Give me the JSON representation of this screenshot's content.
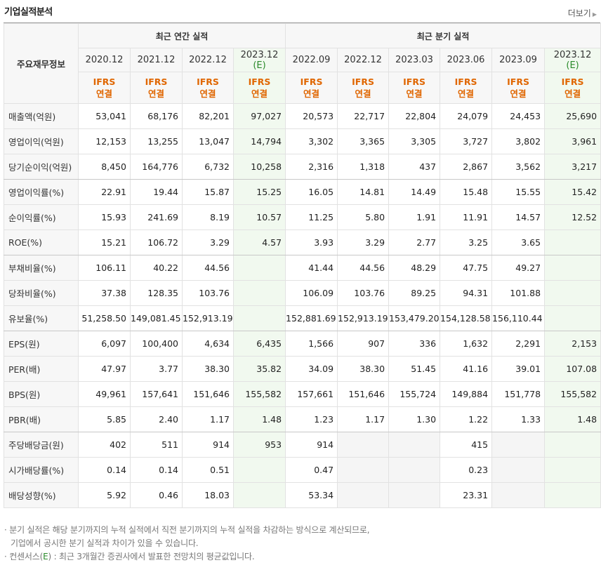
{
  "header": {
    "title": "기업실적분석",
    "more": "더보기"
  },
  "columns": {
    "label_header": "주요재무정보",
    "annual_group": "최근 연간 실적",
    "quarter_group": "최근 분기 실적",
    "periods": [
      {
        "line1": "2020.12",
        "line2": ""
      },
      {
        "line1": "2021.12",
        "line2": ""
      },
      {
        "line1": "2022.12",
        "line2": ""
      },
      {
        "line1": "2023.12",
        "line2": "(E)"
      },
      {
        "line1": "2022.09",
        "line2": ""
      },
      {
        "line1": "2022.12",
        "line2": ""
      },
      {
        "line1": "2023.03",
        "line2": ""
      },
      {
        "line1": "2023.06",
        "line2": ""
      },
      {
        "line1": "2023.09",
        "line2": ""
      },
      {
        "line1": "2023.12",
        "line2": "(E)"
      }
    ],
    "basis_line1": "IFRS",
    "basis_line2": "연결"
  },
  "rows": [
    {
      "label": "매출액(억원)",
      "values": [
        "53,041",
        "68,176",
        "82,201",
        "97,027",
        "20,573",
        "22,717",
        "22,804",
        "24,079",
        "24,453",
        "25,690"
      ]
    },
    {
      "label": "영업이익(억원)",
      "values": [
        "12,153",
        "13,255",
        "13,047",
        "14,794",
        "3,302",
        "3,365",
        "3,305",
        "3,727",
        "3,802",
        "3,961"
      ]
    },
    {
      "label": "당기순이익(억원)",
      "values": [
        "8,450",
        "164,776",
        "6,732",
        "10,258",
        "2,316",
        "1,318",
        "437",
        "2,867",
        "3,562",
        "3,217"
      ]
    },
    {
      "label": "영업이익률(%)",
      "values": [
        "22.91",
        "19.44",
        "15.87",
        "15.25",
        "16.05",
        "14.81",
        "14.49",
        "15.48",
        "15.55",
        "15.42"
      ]
    },
    {
      "label": "순이익률(%)",
      "values": [
        "15.93",
        "241.69",
        "8.19",
        "10.57",
        "11.25",
        "5.80",
        "1.91",
        "11.91",
        "14.57",
        "12.52"
      ]
    },
    {
      "label": "ROE(%)",
      "values": [
        "15.21",
        "106.72",
        "3.29",
        "4.57",
        "3.93",
        "3.29",
        "2.77",
        "3.25",
        "3.65",
        ""
      ]
    },
    {
      "label": "부채비율(%)",
      "values": [
        "106.11",
        "40.22",
        "44.56",
        "",
        "41.44",
        "44.56",
        "48.29",
        "47.75",
        "49.27",
        ""
      ]
    },
    {
      "label": "당좌비율(%)",
      "values": [
        "37.38",
        "128.35",
        "103.76",
        "",
        "106.09",
        "103.76",
        "89.25",
        "94.31",
        "101.88",
        ""
      ]
    },
    {
      "label": "유보율(%)",
      "values": [
        "51,258.50",
        "149,081.45",
        "152,913.19",
        "",
        "152,881.69",
        "152,913.19",
        "153,479.20",
        "154,128.58",
        "156,110.44",
        ""
      ]
    },
    {
      "label": "EPS(원)",
      "values": [
        "6,097",
        "100,400",
        "4,634",
        "6,435",
        "1,566",
        "907",
        "336",
        "1,632",
        "2,291",
        "2,153"
      ]
    },
    {
      "label": "PER(배)",
      "values": [
        "47.97",
        "3.77",
        "38.30",
        "35.82",
        "34.09",
        "38.30",
        "51.45",
        "41.16",
        "39.01",
        "107.08"
      ]
    },
    {
      "label": "BPS(원)",
      "values": [
        "49,961",
        "157,641",
        "151,646",
        "155,582",
        "157,661",
        "151,646",
        "155,724",
        "149,884",
        "151,778",
        "155,582"
      ]
    },
    {
      "label": "PBR(배)",
      "values": [
        "5.85",
        "2.40",
        "1.17",
        "1.48",
        "1.23",
        "1.17",
        "1.30",
        "1.22",
        "1.33",
        "1.48"
      ]
    },
    {
      "label": "주당배당금(원)",
      "values": [
        "402",
        "511",
        "914",
        "953",
        "914",
        "",
        "",
        "415",
        "",
        ""
      ]
    },
    {
      "label": "시가배당률(%)",
      "values": [
        "0.14",
        "0.14",
        "0.51",
        "",
        "0.47",
        "",
        "",
        "0.23",
        "",
        ""
      ]
    },
    {
      "label": "배당성향(%)",
      "values": [
        "5.92",
        "0.46",
        "18.03",
        "",
        "53.34",
        "",
        "",
        "23.31",
        "",
        ""
      ]
    }
  ],
  "notes": {
    "line1": "· 분기 실적은 해당 분기까지의 누적 실적에서 직전 분기까지의 누적 실적을 차감하는 방식으로 계산되므로,",
    "line2": "기업에서 공시한 분기 실적과 차이가 있을 수 있습니다.",
    "line3_pre": "· 컨센서스(",
    "line3_e": "E",
    "line3_post": ") : 최근 3개월간 증권사에서 발표한 전망치의 평균값입니다."
  }
}
